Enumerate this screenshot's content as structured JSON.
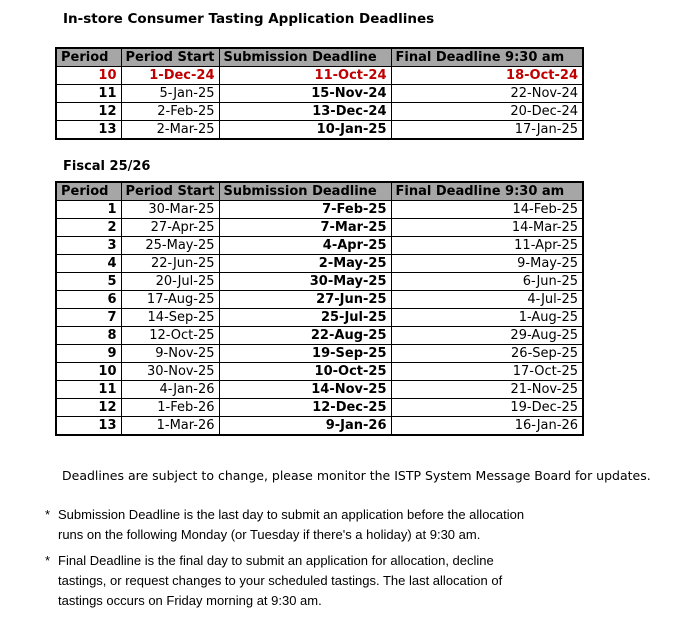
{
  "title": "In-store Consumer Tasting Application Deadlines",
  "colors": {
    "header_gray": "#A6A6A6",
    "final_gray": "#E7E7E7",
    "green": "#18A54A",
    "red": "#C00000"
  },
  "headers": [
    "Period",
    "Period Start",
    "Submission Deadline",
    "Final Deadline 9:30 am"
  ],
  "table_current": {
    "rows": [
      {
        "period": "10",
        "start": "1-Dec-24",
        "submission": "11-Oct-24",
        "final": "18-Oct-24",
        "highlight": true
      },
      {
        "period": "11",
        "start": "5-Jan-25",
        "submission": "15-Nov-24",
        "final": "22-Nov-24",
        "highlight": false
      },
      {
        "period": "12",
        "start": "2-Feb-25",
        "submission": "13-Dec-24",
        "final": "20-Dec-24",
        "highlight": false
      },
      {
        "period": "13",
        "start": "2-Mar-25",
        "submission": "10-Jan-25",
        "final": "17-Jan-25",
        "highlight": false
      }
    ]
  },
  "fiscal_label": "Fiscal 25/26",
  "table_fiscal": {
    "rows": [
      {
        "period": "1",
        "start": "30-Mar-25",
        "submission": "7-Feb-25",
        "final": "14-Feb-25",
        "highlight": false
      },
      {
        "period": "2",
        "start": "27-Apr-25",
        "submission": "7-Mar-25",
        "final": "14-Mar-25",
        "highlight": false
      },
      {
        "period": "3",
        "start": "25-May-25",
        "submission": "4-Apr-25",
        "final": "11-Apr-25",
        "highlight": false
      },
      {
        "period": "4",
        "start": "22-Jun-25",
        "submission": "2-May-25",
        "final": "9-May-25",
        "highlight": false
      },
      {
        "period": "5",
        "start": "20-Jul-25",
        "submission": "30-May-25",
        "final": "6-Jun-25",
        "highlight": false
      },
      {
        "period": "6",
        "start": "17-Aug-25",
        "submission": "27-Jun-25",
        "final": "4-Jul-25",
        "highlight": false
      },
      {
        "period": "7",
        "start": "14-Sep-25",
        "submission": "25-Jul-25",
        "final": "1-Aug-25",
        "highlight": false
      },
      {
        "period": "8",
        "start": "12-Oct-25",
        "submission": "22-Aug-25",
        "final": "29-Aug-25",
        "highlight": false
      },
      {
        "period": "9",
        "start": "9-Nov-25",
        "submission": "19-Sep-25",
        "final": "26-Sep-25",
        "highlight": false
      },
      {
        "period": "10",
        "start": "30-Nov-25",
        "submission": "10-Oct-25",
        "final": "17-Oct-25",
        "highlight": false
      },
      {
        "period": "11",
        "start": "4-Jan-26",
        "submission": "14-Nov-25",
        "final": "21-Nov-25",
        "highlight": false
      },
      {
        "period": "12",
        "start": "1-Feb-26",
        "submission": "12-Dec-25",
        "final": "19-Dec-25",
        "highlight": false
      },
      {
        "period": "13",
        "start": "1-Mar-26",
        "submission": "9-Jan-26",
        "final": "16-Jan-26",
        "highlight": false
      }
    ]
  },
  "notes": {
    "monitor": "Deadlines are subject to change, please monitor the ISTP System Message Board for updates.",
    "bullet1": {
      "marker": "*",
      "lines": [
        "Submission Deadline is the last day to submit an application before the allocation",
        "runs on the following Monday (or Tuesday if there's a holiday) at 9:30 am."
      ]
    },
    "bullet2": {
      "marker": "*",
      "lines": [
        "Final Deadline is the final day to submit an application for allocation, decline",
        "tastings, or request changes to your scheduled tastings. The last allocation of",
        "tastings occurs on Friday morning at 9:30 am."
      ]
    }
  }
}
